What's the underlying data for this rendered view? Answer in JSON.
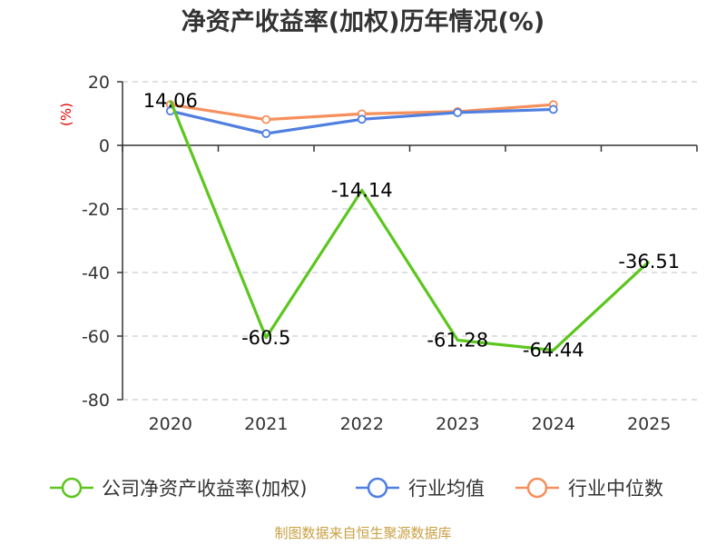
{
  "chart_data": {
    "type": "line",
    "title": "净资产收益率(加权)历年情况(%)",
    "unit_label": "(%)",
    "x": [
      "2020",
      "2021",
      "2022",
      "2023",
      "2024",
      "2025"
    ],
    "ylim": [
      -80,
      20
    ],
    "yticks": [
      20,
      0,
      -20,
      -40,
      -60,
      -80
    ],
    "grid": true,
    "legend_position": "bottom",
    "series": [
      {
        "name": "公司净资产收益率(加权)",
        "color": "#5cc61e",
        "values": [
          14.06,
          -60.5,
          -14.14,
          -61.28,
          -64.44,
          -36.51
        ],
        "labels": [
          "14.06",
          "-60.5",
          "-14.14",
          "-61.28",
          "-64.44",
          "-36.51"
        ],
        "show_markers": false
      },
      {
        "name": "行业均值",
        "color": "#4f7fe0",
        "values": [
          10.8,
          3.7,
          8.2,
          10.3,
          11.3,
          null
        ],
        "show_markers": true
      },
      {
        "name": "行业中位数",
        "color": "#f5905c",
        "values": [
          12.8,
          8.1,
          9.9,
          10.6,
          12.8,
          null
        ],
        "show_markers": true
      }
    ]
  },
  "colors": {
    "unit_label": "#e00000",
    "source": "#c9a043",
    "axis": "#333333",
    "grid": "#cccccc"
  },
  "source_note": "制图数据来自恒生聚源数据库"
}
